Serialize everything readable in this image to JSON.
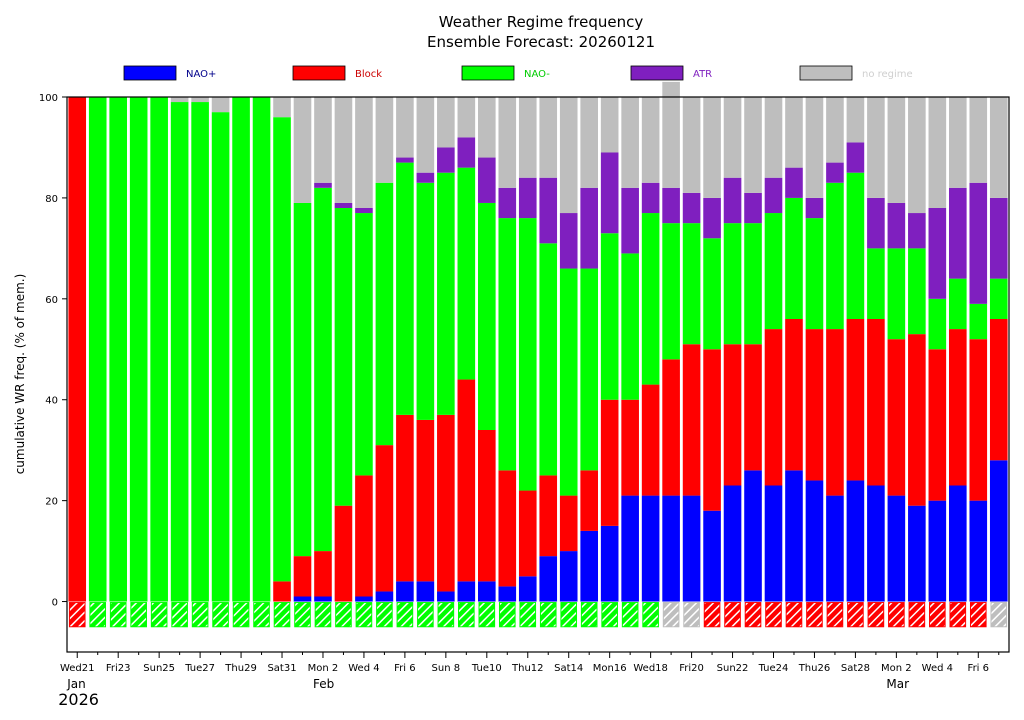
{
  "chart_data": {
    "type": "bar",
    "stacked": true,
    "title": "Weather Regime frequency",
    "subtitle": "Ensemble Forecast: 20260121",
    "ylabel": "cumulative WR freq. (% of mem.)",
    "xlabel": "",
    "ylim": [
      -10,
      100
    ],
    "yticks": [
      0,
      20,
      40,
      60,
      80,
      100
    ],
    "legend_position": "top",
    "series": [
      {
        "name": "NAO+",
        "color": "#0000ff",
        "label_color": "#00008b",
        "values": [
          0,
          0,
          0,
          0,
          0,
          0,
          0,
          0,
          0,
          0,
          0,
          1,
          1,
          0,
          1,
          2,
          4,
          4,
          2,
          4,
          4,
          3,
          5,
          9,
          10,
          14,
          15,
          21,
          21,
          21,
          21,
          18,
          23,
          26,
          23,
          26,
          24,
          21,
          24,
          23,
          21,
          19,
          20,
          23,
          20,
          28
        ]
      },
      {
        "name": "Block",
        "color": "#ff0000",
        "label_color": "#cc0000",
        "values": [
          100,
          0,
          0,
          0,
          0,
          0,
          0,
          0,
          0,
          0,
          4,
          8,
          9,
          19,
          24,
          29,
          33,
          32,
          35,
          40,
          30,
          23,
          17,
          16,
          11,
          12,
          25,
          19,
          22,
          27,
          30,
          32,
          28,
          25,
          31,
          30,
          30,
          33,
          32,
          33,
          31,
          34,
          30,
          31,
          32,
          28
        ]
      },
      {
        "name": "NAO-",
        "color": "#00ff00",
        "label_color": "#00cc00",
        "values": [
          0,
          100,
          100,
          100,
          100,
          99,
          99,
          97,
          100,
          100,
          92,
          70,
          72,
          59,
          52,
          52,
          50,
          47,
          48,
          42,
          45,
          50,
          54,
          46,
          45,
          40,
          33,
          29,
          34,
          27,
          24,
          22,
          24,
          24,
          23,
          24,
          22,
          29,
          29,
          14,
          18,
          17,
          10,
          10,
          7,
          8
        ]
      },
      {
        "name": "ATR",
        "color": "#7f1fbf",
        "label_color": "#7f1fbf",
        "values": [
          0,
          0,
          0,
          0,
          0,
          0,
          0,
          0,
          0,
          0,
          0,
          0,
          1,
          1,
          1,
          0,
          1,
          2,
          5,
          6,
          9,
          6,
          8,
          13,
          11,
          16,
          16,
          13,
          6,
          7,
          6,
          8,
          9,
          6,
          7,
          6,
          4,
          4,
          6,
          10,
          9,
          7,
          18,
          18,
          24,
          16
        ]
      },
      {
        "name": "no regime",
        "color": "#bebebe",
        "label_color": "#cfcfcf",
        "values": [
          0,
          0,
          0,
          0,
          0,
          1,
          1,
          3,
          0,
          0,
          4,
          21,
          17,
          21,
          22,
          17,
          12,
          15,
          10,
          8,
          12,
          18,
          16,
          16,
          23,
          18,
          11,
          18,
          17,
          21,
          19,
          20,
          16,
          19,
          16,
          14,
          20,
          13,
          9,
          20,
          21,
          23,
          22,
          18,
          17,
          20
        ]
      }
    ],
    "indicator": {
      "description": "hatched box below zero line",
      "range": [
        -5,
        0
      ],
      "colors_by_index": [
        "#ff0000",
        "#00ff00",
        "#00ff00",
        "#00ff00",
        "#00ff00",
        "#00ff00",
        "#00ff00",
        "#00ff00",
        "#00ff00",
        "#00ff00",
        "#00ff00",
        "#00ff00",
        "#00ff00",
        "#00ff00",
        "#00ff00",
        "#00ff00",
        "#00ff00",
        "#00ff00",
        "#00ff00",
        "#00ff00",
        "#00ff00",
        "#00ff00",
        "#00ff00",
        "#00ff00",
        "#00ff00",
        "#00ff00",
        "#00ff00",
        "#00ff00",
        "#00ff00",
        "#bebebe",
        "#bebebe",
        "#ff0000",
        "#ff0000",
        "#ff0000",
        "#ff0000",
        "#ff0000",
        "#ff0000",
        "#ff0000",
        "#ff0000",
        "#ff0000",
        "#ff0000",
        "#ff0000",
        "#ff0000",
        "#ff0000",
        "#ff0000",
        "#bebebe"
      ]
    },
    "xtick_labels": [
      {
        "index": 0,
        "text": "Wed21",
        "color": "#000000"
      },
      {
        "index": 2,
        "text": "Fri23",
        "color": "#000000"
      },
      {
        "index": 4,
        "text": "Sun25",
        "color": "#cc0000"
      },
      {
        "index": 6,
        "text": "Tue27",
        "color": "#000000"
      },
      {
        "index": 8,
        "text": "Thu29",
        "color": "#000000"
      },
      {
        "index": 10,
        "text": "Sat31",
        "color": "#000000"
      },
      {
        "index": 12,
        "text": "Mon 2",
        "color": "#000000"
      },
      {
        "index": 14,
        "text": "Wed 4",
        "color": "#000000"
      },
      {
        "index": 16,
        "text": "Fri 6",
        "color": "#000000"
      },
      {
        "index": 18,
        "text": "Sun 8",
        "color": "#cc0000"
      },
      {
        "index": 20,
        "text": "Tue10",
        "color": "#000000"
      },
      {
        "index": 22,
        "text": "Thu12",
        "color": "#000000"
      },
      {
        "index": 24,
        "text": "Sat14",
        "color": "#000000"
      },
      {
        "index": 26,
        "text": "Mon16",
        "color": "#000000"
      },
      {
        "index": 28,
        "text": "Wed18",
        "color": "#000000"
      },
      {
        "index": 30,
        "text": "Fri20",
        "color": "#000000"
      },
      {
        "index": 32,
        "text": "Sun22",
        "color": "#cc0000"
      },
      {
        "index": 34,
        "text": "Tue24",
        "color": "#000000"
      },
      {
        "index": 36,
        "text": "Thu26",
        "color": "#000000"
      },
      {
        "index": 38,
        "text": "Sat28",
        "color": "#000000"
      },
      {
        "index": 40,
        "text": "Mon 2",
        "color": "#000000"
      },
      {
        "index": 42,
        "text": "Wed 4",
        "color": "#000000"
      },
      {
        "index": 44,
        "text": "Fri 6",
        "color": "#000000"
      }
    ],
    "month_labels": [
      {
        "index": 0,
        "text": "Jan"
      },
      {
        "index": 12,
        "text": "Feb"
      },
      {
        "index": 40,
        "text": "Mar"
      }
    ],
    "year_label": {
      "index": 0,
      "text": "2026"
    }
  }
}
